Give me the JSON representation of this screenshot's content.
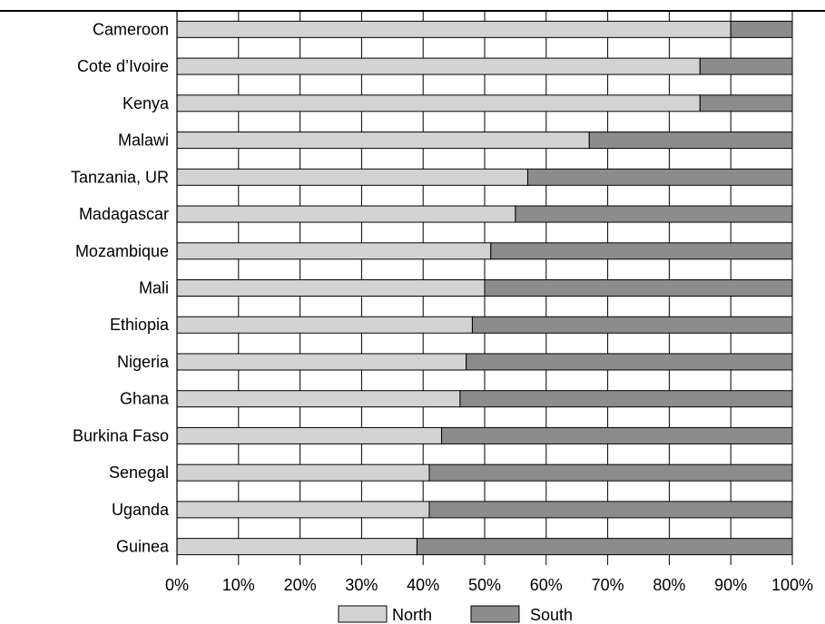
{
  "chart_data": {
    "type": "bar",
    "orientation": "horizontal",
    "stacked": true,
    "normalized_percent": true,
    "categories": [
      "Cameroon",
      "Cote d’Ivoire",
      "Kenya",
      "Malawi",
      "Tanzania, UR",
      "Madagascar",
      "Mozambique",
      "Mali",
      "Ethiopia",
      "Nigeria",
      "Ghana",
      "Burkina Faso",
      "Senegal",
      "Uganda",
      "Guinea"
    ],
    "series": [
      {
        "name": "North",
        "color": "#d3d3d3",
        "values": [
          90,
          85,
          85,
          67,
          57,
          55,
          51,
          50,
          48,
          47,
          46,
          43,
          41,
          41,
          39
        ]
      },
      {
        "name": "South",
        "color": "#8c8c8c",
        "values": [
          10,
          15,
          15,
          33,
          43,
          45,
          49,
          50,
          52,
          53,
          54,
          57,
          59,
          59,
          61
        ]
      }
    ],
    "xlim": [
      0,
      100
    ],
    "xticks": [
      "0%",
      "10%",
      "20%",
      "30%",
      "40%",
      "50%",
      "60%",
      "70%",
      "80%",
      "90%",
      "100%"
    ],
    "grid": "vertical",
    "legend": "bottom-center"
  }
}
